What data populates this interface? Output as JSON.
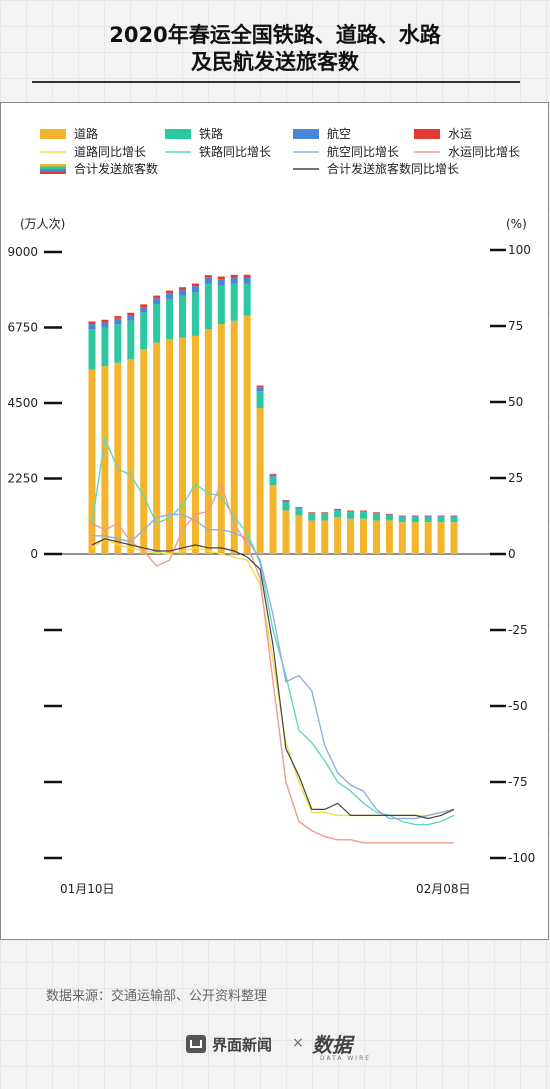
{
  "title": {
    "line1": "2020年春运全国铁路、道路、水路",
    "line2": "及民航发送旅客数"
  },
  "colors": {
    "road": "#F2B52C",
    "rail": "#2DC7A1",
    "air": "#4A86D8",
    "water": "#E53A2F",
    "road_pct": "#F2DE4A",
    "rail_pct": "#5FD8C0",
    "air_pct": "#8FB0E6",
    "water_pct": "#F09A90",
    "total_pct": "#444444"
  },
  "legend": {
    "road": "道路",
    "rail": "铁路",
    "air": "航空",
    "water": "水运",
    "road_pct": "道路同比增长",
    "rail_pct": "铁路同比增长",
    "air_pct": "航空同比增长",
    "water_pct": "水运同比增长",
    "total": "合计发送旅客数",
    "total_pct": "合计发送旅客数同比增长"
  },
  "footer": {
    "source": "数据来源：交通运输部、公开资料整理",
    "brand": "界面新闻",
    "times": "×",
    "partner": "数据",
    "partner_sub": "DATA WIRE"
  },
  "chart_data": {
    "type": "bar",
    "left_unit": "(万人次)",
    "right_unit": "(%)",
    "x_start_label": "01月10日",
    "x_end_label": "02月08日",
    "left_ticks": [
      "9000",
      "6750",
      "4500",
      "2250",
      "0"
    ],
    "left_tick_values": [
      9000,
      6750,
      4500,
      2250,
      0
    ],
    "right_ticks": [
      "100",
      "75",
      "50",
      "25",
      "0",
      "-25",
      "-50",
      "-75",
      "-100"
    ],
    "right_tick_values": [
      100,
      75,
      50,
      25,
      0,
      -25,
      -50,
      -75,
      -100
    ],
    "ylim_left": [
      0,
      9000
    ],
    "ylim_right": [
      -100,
      100
    ],
    "series": [
      {
        "key": "road",
        "name": "道路",
        "values": [
          5500,
          5600,
          5700,
          5800,
          6100,
          6300,
          6400,
          6450,
          6500,
          6700,
          6850,
          6950,
          7100,
          4350,
          2050,
          1300,
          1150,
          1000,
          1000,
          1100,
          1050,
          1050,
          1000,
          1000,
          950,
          950,
          950,
          950,
          950
        ]
      },
      {
        "key": "rail",
        "name": "铁路",
        "values": [
          1200,
          1150,
          1150,
          1150,
          1100,
          1150,
          1200,
          1250,
          1300,
          1350,
          1150,
          1100,
          950,
          500,
          250,
          250,
          200,
          200,
          200,
          200,
          200,
          200,
          200,
          150,
          150,
          150,
          150,
          150,
          150
        ]
      },
      {
        "key": "air",
        "name": "航空",
        "values": [
          150,
          150,
          160,
          160,
          160,
          170,
          170,
          170,
          180,
          180,
          190,
          190,
          190,
          120,
          60,
          40,
          30,
          25,
          25,
          25,
          25,
          25,
          25,
          25,
          25,
          25,
          25,
          25,
          25
        ]
      },
      {
        "key": "water",
        "name": "水运",
        "values": [
          80,
          80,
          80,
          80,
          80,
          80,
          80,
          80,
          80,
          80,
          80,
          80,
          80,
          50,
          30,
          20,
          20,
          20,
          20,
          20,
          20,
          20,
          20,
          20,
          20,
          20,
          20,
          20,
          20
        ]
      }
    ],
    "lines": [
      {
        "key": "road_pct",
        "name": "道路同比增长",
        "values": [
          2,
          5,
          3,
          2,
          1,
          0.5,
          0,
          1,
          2,
          1,
          0,
          -1,
          -2,
          -10,
          -35,
          -62,
          -75,
          -85,
          -85,
          -86,
          -86,
          -86,
          -86,
          -86,
          -86,
          -86,
          -86,
          -85,
          -84
        ]
      },
      {
        "key": "rail_pct",
        "name": "铁路同比增长",
        "values": [
          10,
          38,
          28,
          26,
          19,
          10,
          12,
          16,
          23,
          20,
          19,
          12,
          7,
          -3,
          -25,
          -40,
          -58,
          -62,
          -68,
          -75,
          -78,
          -82,
          -85,
          -86,
          -88,
          -89,
          -89,
          -88,
          -86
        ]
      },
      {
        "key": "air_pct",
        "name": "航空同比增长",
        "values": [
          6,
          6,
          5,
          4,
          8,
          12,
          13,
          13,
          11,
          8,
          8,
          7,
          5,
          -2,
          -20,
          -42,
          -40,
          -45,
          -63,
          -72,
          -76,
          -78,
          -84,
          -87,
          -87,
          -87,
          -86,
          -85,
          -84
        ]
      },
      {
        "key": "water_pct",
        "name": "水运同比增长",
        "values": [
          10,
          8,
          10,
          4,
          1,
          -4,
          -2,
          8,
          13,
          14,
          23,
          10,
          3,
          -8,
          -42,
          -75,
          -88,
          -91,
          -93,
          -94,
          -94,
          -95,
          -95,
          -95,
          -95,
          -95,
          -95,
          -95,
          -95
        ]
      },
      {
        "key": "total_pct",
        "name": "合计发送旅客数同比增长",
        "values": [
          3,
          5,
          4,
          3,
          2,
          1,
          1,
          2,
          3,
          2,
          2,
          1,
          -1,
          -5,
          -30,
          -64,
          -73,
          -84,
          -84,
          -82,
          -86,
          -86,
          -86,
          -86,
          -86,
          -86,
          -87,
          -86,
          -84
        ]
      }
    ]
  }
}
